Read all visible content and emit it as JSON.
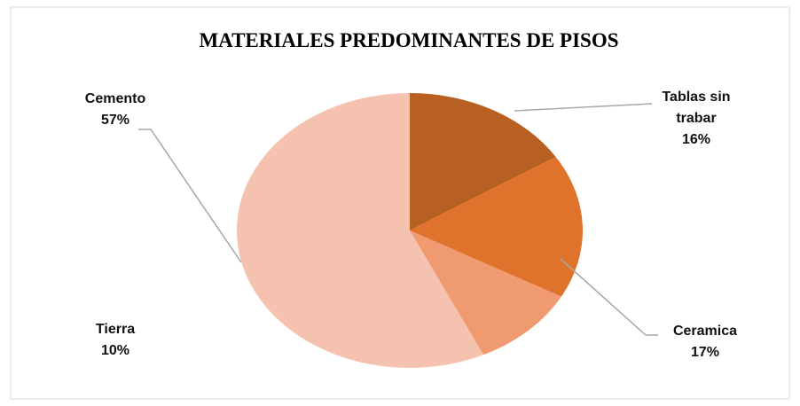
{
  "chart_data": {
    "type": "pie",
    "title": "MATERIALES  PREDOMINANTES DE PISOS",
    "categories": [
      "Tablas sin trabar",
      "Ceramica",
      "Tierra",
      "Cemento"
    ],
    "values": [
      16,
      17,
      10,
      57
    ],
    "value_labels": [
      "16%",
      "17%",
      "10%",
      "57%"
    ],
    "colors": [
      "#b85f22",
      "#e0732c",
      "#f09a72",
      "#f5c2b0"
    ]
  }
}
